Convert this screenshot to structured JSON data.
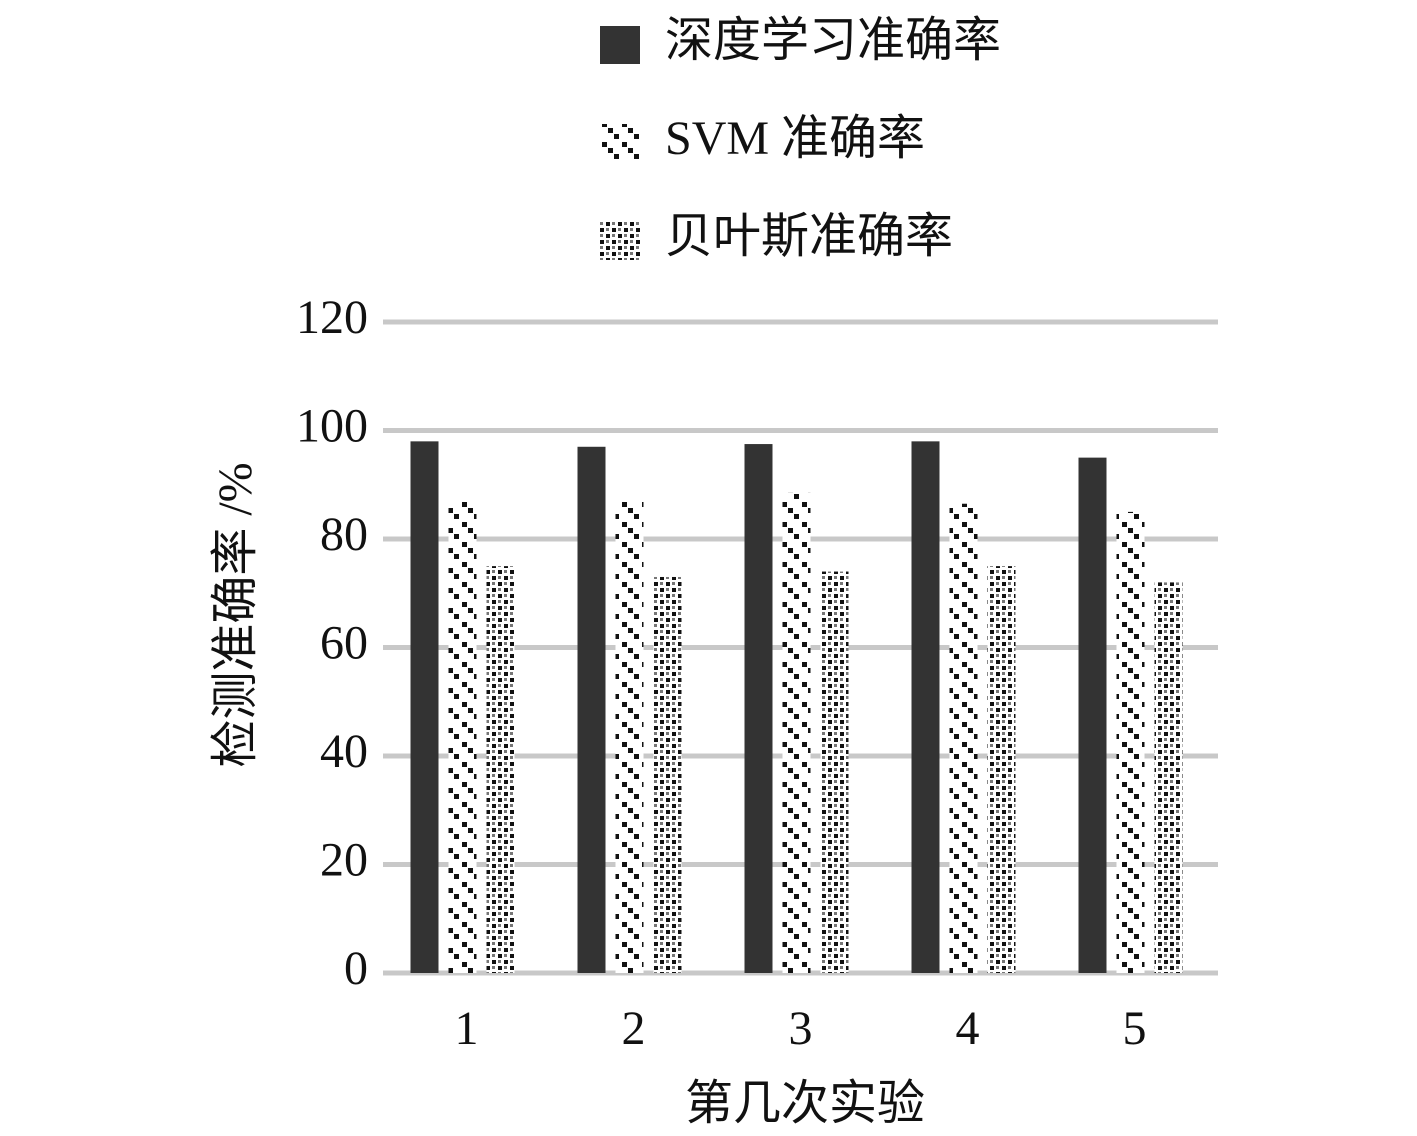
{
  "chart_data": {
    "type": "bar",
    "x_label": "第几次实验",
    "y_label": "检测准确率 /%",
    "categories": [
      "1",
      "2",
      "3",
      "4",
      "5"
    ],
    "series": [
      {
        "name": "深度学习准确率",
        "color": "#333333",
        "pattern": "solid",
        "values": [
          98,
          97,
          97.5,
          98,
          95
        ]
      },
      {
        "name": "SVM 准确率",
        "color": "#111111",
        "pattern": "diagonal",
        "values": [
          87,
          87,
          88.5,
          86.5,
          85
        ]
      },
      {
        "name": "贝叶斯准确率",
        "color": "#111111",
        "pattern": "checker",
        "values": [
          75,
          73,
          74,
          75,
          72
        ]
      }
    ],
    "ylim": [
      0,
      120
    ],
    "yticks": [
      0,
      20,
      40,
      60,
      80,
      100,
      120
    ],
    "grid": true
  }
}
